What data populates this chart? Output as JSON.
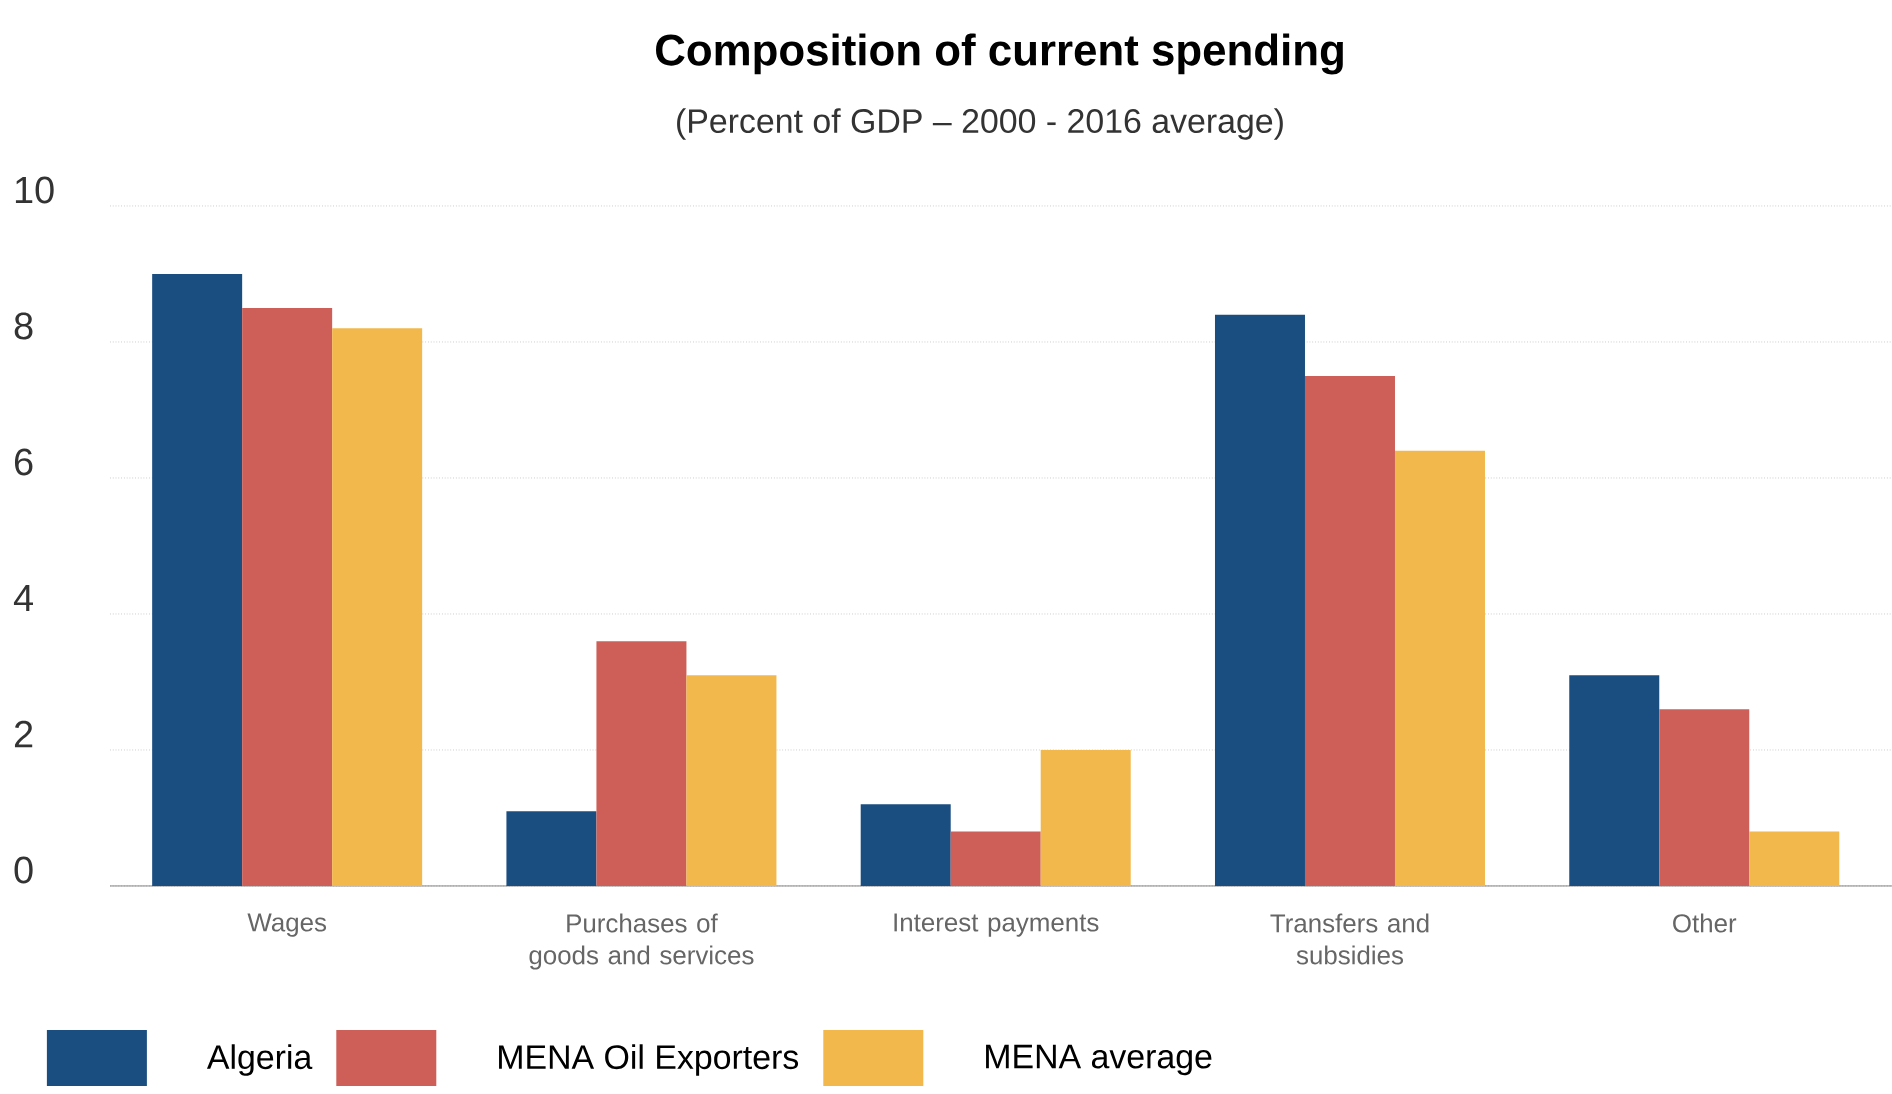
{
  "chart_data": {
    "type": "bar",
    "title": "Composition of current spending",
    "subtitle": "(Percent of GDP – 2000 - 2016 average)",
    "categories": [
      "Wages",
      "Purchases of goods and services",
      "Interest payments",
      "Transfers and subsidies",
      "Other"
    ],
    "series": [
      {
        "name": "Algeria",
        "color": "#1a4e80",
        "values": [
          9.0,
          1.1,
          1.2,
          8.4,
          3.1
        ]
      },
      {
        "name": "MENA Oil Exporters",
        "color": "#cd5f58",
        "values": [
          8.5,
          3.6,
          0.8,
          7.5,
          2.6
        ]
      },
      {
        "name": "MENA average",
        "color": "#f2b84b",
        "values": [
          8.2,
          3.1,
          2.0,
          6.4,
          0.8
        ]
      }
    ],
    "ylim": [
      0,
      10
    ],
    "yticks": [
      0,
      2,
      4,
      6,
      8,
      10
    ],
    "grid": "y",
    "legend": "bottom"
  }
}
